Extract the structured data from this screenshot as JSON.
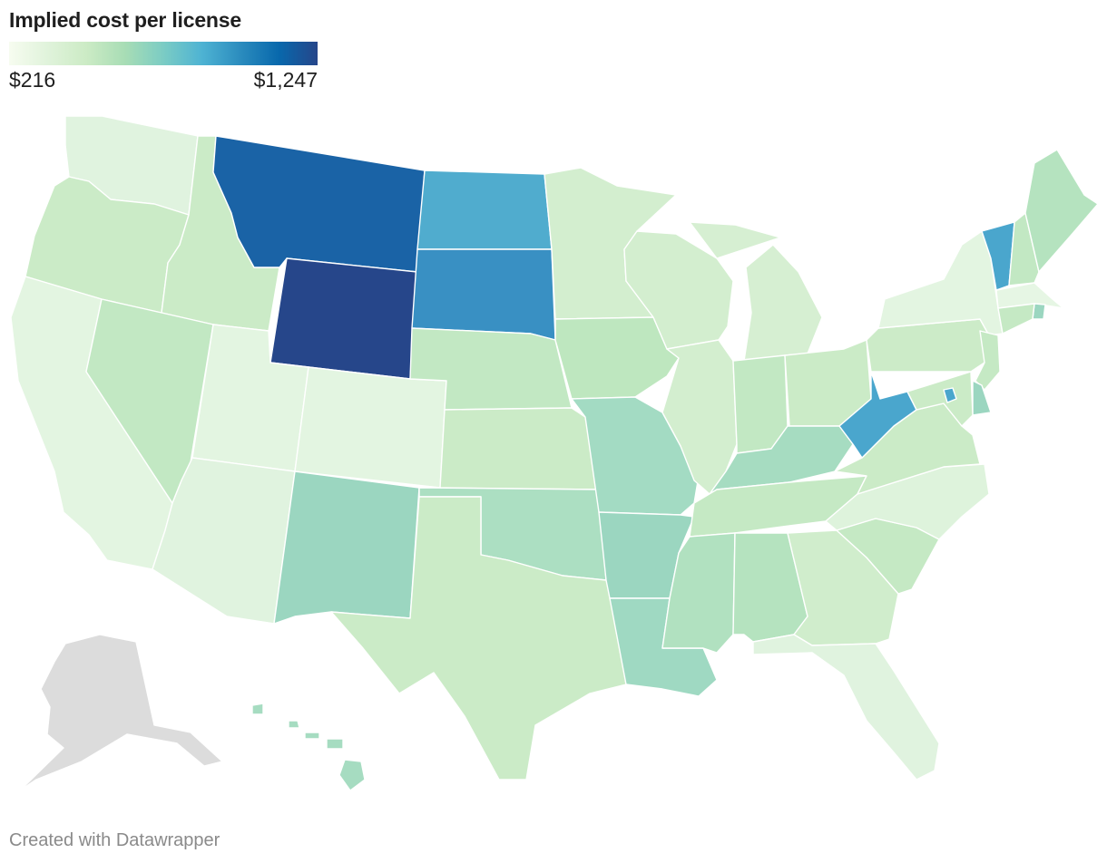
{
  "legend": {
    "title": "Implied cost per license",
    "min_label": "$216",
    "max_label": "$1,247",
    "min_value": 216,
    "max_value": 1247,
    "colors": [
      "#f7fcf0",
      "#e0f3db",
      "#ccebc5",
      "#a8ddb5",
      "#7bccc4",
      "#4eb3d3",
      "#2b8cbe",
      "#0868ac",
      "#26468a"
    ]
  },
  "no_data_color": "#dcdcdc",
  "footer": {
    "credit": "Created with Datawrapper"
  },
  "states": {
    "WA": "#e0f3df",
    "OR": "#cbebc7",
    "CA": "#e3f5e1",
    "ID": "#cbebc7",
    "NV": "#c2e8c3",
    "MT": "#1a63a6",
    "WY": "#26468a",
    "UT": "#e3f5e1",
    "AZ": "#e0f3df",
    "CO": "#e3f5e1",
    "NM": "#9bd6c0",
    "ND": "#50acce",
    "SD": "#3990c3",
    "NE": "#c2e8c3",
    "KS": "#cbebc7",
    "OK": "#acdfc2",
    "TX": "#cbebc7",
    "MN": "#d3eecf",
    "IA": "#bee7bf",
    "MO": "#a3dbc3",
    "AR": "#9bd6c0",
    "LA": "#9fd9c2",
    "WI": "#d3eecf",
    "IL": "#d3eecf",
    "MI": "#d6efd2",
    "IN": "#c2e8c3",
    "OH": "#cbebc7",
    "KY": "#a6dcc1",
    "TN": "#c5e9c4",
    "MS": "#b1e1c0",
    "AL": "#b5e3bf",
    "GA": "#d0edcc",
    "FL": "#e0f3df",
    "SC": "#c5e9c4",
    "NC": "#def3dc",
    "VA": "#cbebc7",
    "WV": "#4aa6cd",
    "PA": "#ccebc8",
    "NY": "#e3f5e1",
    "VT": "#4aa6cd",
    "NH": "#c2e8c3",
    "ME": "#b5e3bf",
    "MA": "#e6f6e4",
    "RI": "#9bd6c0",
    "CT": "#c5e9c4",
    "NJ": "#c5e9c4",
    "DE": "#9bd6c0",
    "MD": "#cbebc7",
    "DC": "#4aa6cd",
    "HI": "#a6dcc1",
    "AK": "#dcdcdc"
  }
}
